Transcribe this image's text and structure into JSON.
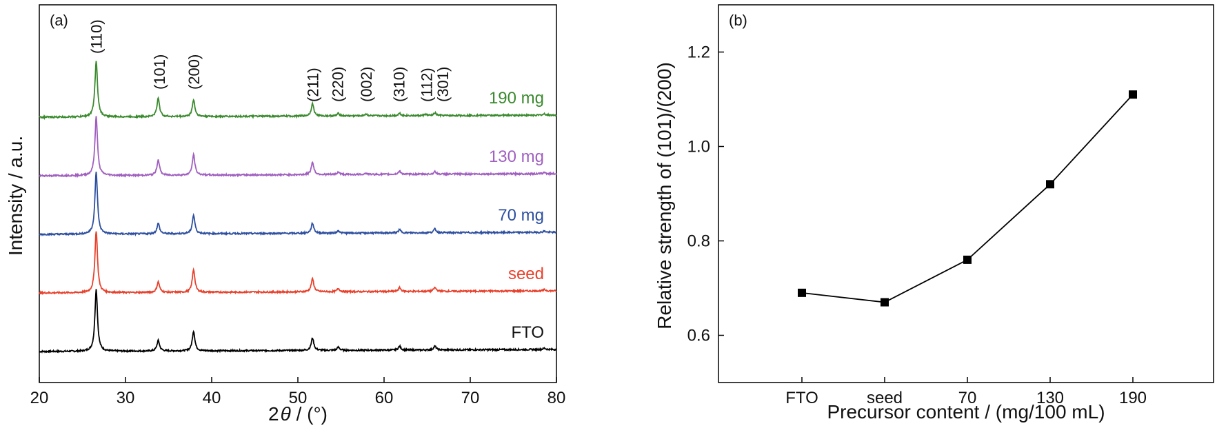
{
  "chart_data": [
    {
      "type": "line",
      "panel_label": "(a)",
      "xlabel_prefix": "2",
      "xlabel_symbol": "θ",
      "xlabel_suffix": " / (°)",
      "ylabel": "Intensity / a.u.",
      "xlim": [
        20,
        80
      ],
      "x_ticks": [
        20,
        30,
        40,
        50,
        60,
        70,
        80
      ],
      "y_tick_labels": false,
      "peak_labels": [
        {
          "label": "(110)",
          "x": 26.6
        },
        {
          "label": "(101)",
          "x": 33.9
        },
        {
          "label": "(200)",
          "x": 37.9
        },
        {
          "label": "(211)",
          "x": 51.7
        },
        {
          "label": "(220)",
          "x": 54.6
        },
        {
          "label": "(002)",
          "x": 57.9
        },
        {
          "label": "(310)",
          "x": 61.7
        },
        {
          "label": "(112)",
          "x": 64.9
        },
        {
          "label": "(301)",
          "x": 66.8
        }
      ],
      "peak_positions": [
        26.6,
        33.8,
        37.9,
        51.7,
        54.7,
        57.9,
        61.8,
        64.8,
        65.9,
        78.6
      ],
      "series": [
        {
          "name": "FTO",
          "color": "#000000",
          "offset": 0,
          "intensities": [
            1.0,
            0.17,
            0.32,
            0.2,
            0.05,
            0.0,
            0.06,
            0.0,
            0.06,
            0.02
          ]
        },
        {
          "name": "seed",
          "color": "#e8412c",
          "offset": 1,
          "intensities": [
            1.0,
            0.17,
            0.37,
            0.21,
            0.05,
            0.0,
            0.06,
            0.0,
            0.06,
            0.02
          ]
        },
        {
          "name": "70 mg",
          "color": "#2d4fa0",
          "offset": 2,
          "intensities": [
            1.0,
            0.17,
            0.3,
            0.16,
            0.04,
            0.0,
            0.05,
            0.0,
            0.06,
            0.02
          ]
        },
        {
          "name": "130 mg",
          "color": "#a05fc0",
          "offset": 3,
          "intensities": [
            0.95,
            0.25,
            0.33,
            0.2,
            0.04,
            0.02,
            0.05,
            0.0,
            0.04,
            0.02
          ]
        },
        {
          "name": "190 mg",
          "color": "#3a8a2e",
          "offset": 4,
          "intensities": [
            0.9,
            0.3,
            0.27,
            0.2,
            0.04,
            0.03,
            0.04,
            0.02,
            0.04,
            0.02
          ]
        }
      ]
    },
    {
      "type": "line",
      "panel_label": "(b)",
      "xlabel": "Precursor content / (mg/100 mL)",
      "ylabel": "Relative strength of (101)/(200)",
      "categories": [
        "FTO",
        "seed",
        "70",
        "130",
        "190"
      ],
      "values": [
        0.69,
        0.67,
        0.76,
        0.92,
        1.11
      ],
      "ylim": [
        0.5,
        1.3
      ],
      "y_ticks": [
        "0.6",
        "0.8",
        "1.0",
        "1.2"
      ],
      "marker": "square",
      "color": "#000000"
    }
  ]
}
